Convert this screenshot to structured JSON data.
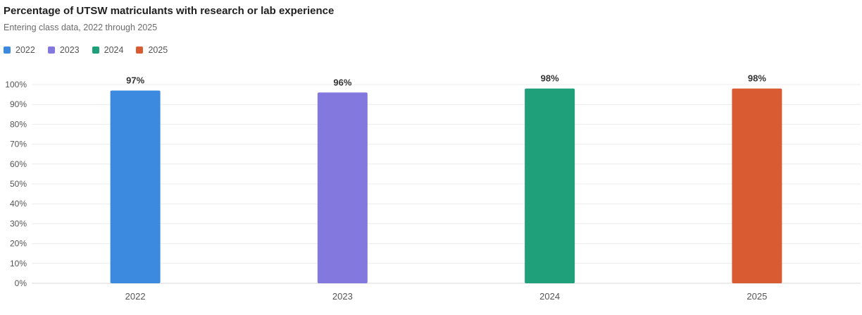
{
  "chart_data": {
    "type": "bar",
    "title": "Percentage of UTSW matriculants with research or lab experience",
    "subtitle": "Entering class data, 2022 through 2025",
    "categories": [
      "2022",
      "2023",
      "2024",
      "2025"
    ],
    "values": [
      97,
      96,
      98,
      98
    ],
    "data_labels": [
      "97%",
      "96%",
      "98%",
      "98%"
    ],
    "colors": [
      "#3b8ae0",
      "#8278dd",
      "#1fa07a",
      "#d95b32"
    ],
    "legend": [
      "2022",
      "2023",
      "2024",
      "2025"
    ],
    "legend_position": "top-left",
    "ylim": [
      0,
      100
    ],
    "yticks": [
      0,
      10,
      20,
      30,
      40,
      50,
      60,
      70,
      80,
      90,
      100
    ],
    "ytick_labels": [
      "0%",
      "10%",
      "20%",
      "30%",
      "40%",
      "50%",
      "60%",
      "70%",
      "80%",
      "90%",
      "100%"
    ],
    "grid": true,
    "xlabel": "",
    "ylabel": ""
  }
}
